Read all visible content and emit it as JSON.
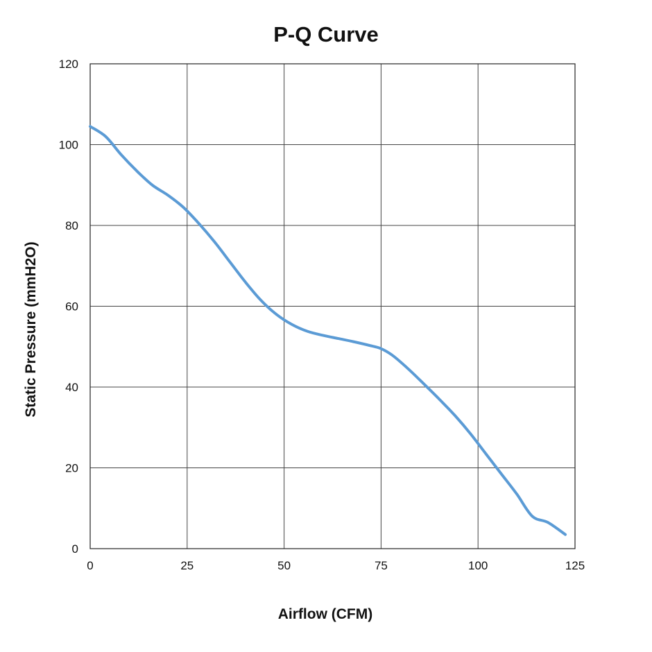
{
  "chart_data": {
    "type": "line",
    "title": "P-Q Curve",
    "xlabel": "Airflow (CFM)",
    "ylabel": "Static Pressure (mmH2O)",
    "xlim": [
      0,
      125
    ],
    "ylim": [
      0,
      120
    ],
    "x_ticks": [
      0,
      25,
      50,
      75,
      100,
      125
    ],
    "y_ticks": [
      0,
      20,
      40,
      60,
      80,
      100,
      120
    ],
    "grid": true,
    "legend": "none",
    "series": [
      {
        "color": "#5b9bd5",
        "x": [
          0,
          4,
          8,
          12,
          16,
          20,
          24,
          28,
          32,
          36,
          40,
          44,
          48,
          52,
          56,
          60,
          64,
          68,
          72,
          75,
          78,
          82,
          86,
          90,
          94,
          98,
          102,
          106,
          110,
          114,
          118,
          122.5
        ],
        "y": [
          104.5,
          102,
          97.5,
          93.5,
          90,
          87.5,
          84.5,
          80.5,
          76,
          71,
          66,
          61.5,
          58,
          55.5,
          53.8,
          52.8,
          52,
          51.2,
          50.3,
          49.5,
          47.8,
          44.5,
          40.8,
          37,
          33,
          28.5,
          23.5,
          18.5,
          13.5,
          8,
          6.5,
          3.5
        ]
      }
    ]
  }
}
